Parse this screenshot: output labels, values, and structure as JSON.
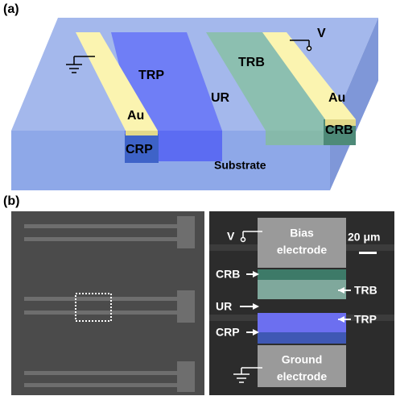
{
  "panel_a": {
    "label": "(a)",
    "voltage": "V",
    "regions": {
      "trb": "TRB",
      "trp": "TRP",
      "ur": "UR",
      "crb": "CRB",
      "crp": "CRP"
    },
    "electrodes": [
      "Au",
      "Au"
    ],
    "substrate": "Substrate"
  },
  "panel_b": {
    "label": "(b)",
    "voltage": "V",
    "bias_electrode": [
      "Bias",
      "electrode"
    ],
    "scale_bar": "20 μm",
    "labels": {
      "crb": "CRB",
      "trb": "TRB",
      "ur": "UR",
      "trp": "TRP",
      "crp": "CRP"
    },
    "ground_electrode": [
      "Ground",
      "electrode"
    ]
  }
}
